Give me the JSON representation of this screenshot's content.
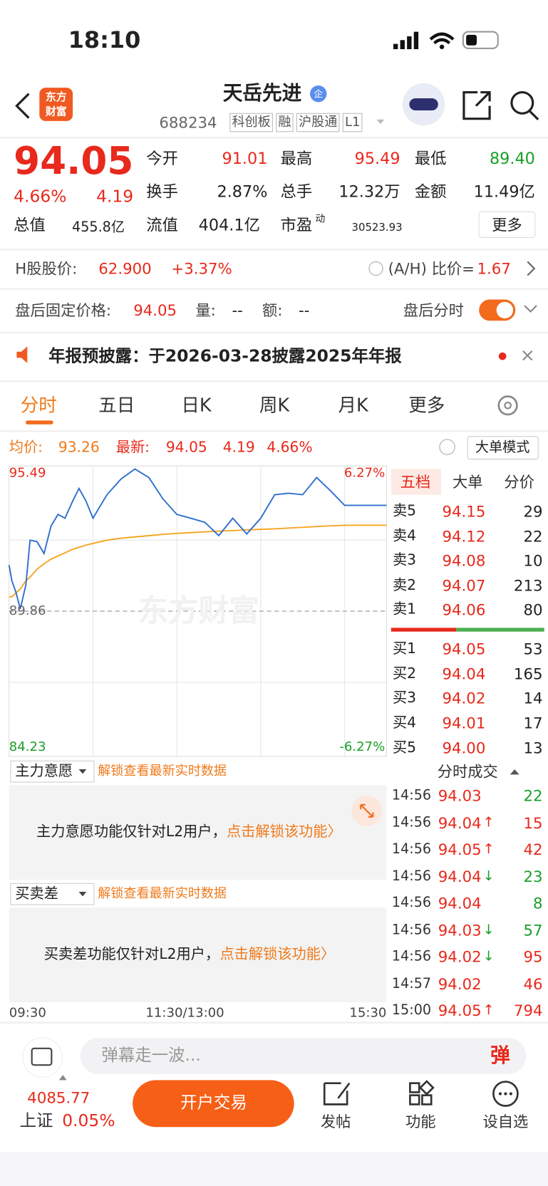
{
  "status": {
    "time": "18:10"
  },
  "header": {
    "logo": [
      "东方",
      "财富"
    ],
    "title": "天岳先进",
    "badge": "企",
    "code": "688234",
    "tags": [
      "科创板",
      "融",
      "沪股通",
      "L1"
    ]
  },
  "quote": {
    "price": "94.05",
    "change_pct": "4.66%",
    "change": "4.19",
    "fields": [
      {
        "label": "今开",
        "value": "91.01",
        "color": "#e8291c"
      },
      {
        "label": "最高",
        "value": "95.49",
        "color": "#e8291c"
      },
      {
        "label": "最低",
        "value": "89.40",
        "color": "#1a9e2a"
      },
      {
        "label": "换手",
        "value": "2.87%"
      },
      {
        "label": "总手",
        "value": "12.32万"
      },
      {
        "label": "金额",
        "value": "11.49亿"
      },
      {
        "label": "总值",
        "value": "455.8亿"
      },
      {
        "label": "流值",
        "value": "404.1亿"
      },
      {
        "label": "市盈",
        "sup": "动",
        "value": "30523.93"
      }
    ],
    "more": "更多"
  },
  "hk": {
    "label": "H股股价:",
    "price": "62.900",
    "change": "+3.37%",
    "ah_label": "(A/H) 比价=",
    "ah": "1.67"
  },
  "after_hours": {
    "label": "盘后固定价格:",
    "price": "94.05",
    "vol_label": "量:",
    "vol": "--",
    "amt_label": "额:",
    "amt": "--",
    "switch_label": "盘后分时"
  },
  "notice": "年报预披露：于2026-03-28披露2025年年报",
  "tabs": [
    "分时",
    "五日",
    "日K",
    "周K",
    "月K",
    "更多"
  ],
  "stats": {
    "avg_label": "均价:",
    "avg": "93.26",
    "last_label": "最新:",
    "last": "94.05",
    "change": "4.19",
    "change_pct": "4.66%",
    "mode": "大单模式"
  },
  "chart": {
    "type": "line",
    "x": [
      0,
      2,
      5,
      8,
      12,
      15,
      20,
      25,
      30,
      35,
      40,
      45,
      50,
      55,
      60,
      70,
      80,
      90,
      100,
      110,
      120,
      130,
      140,
      150,
      160,
      170,
      180,
      190,
      200,
      210,
      220,
      230,
      240,
      270
    ],
    "xlim": [
      0,
      270
    ],
    "ylim": [
      84.23,
      95.49
    ],
    "yticks": [
      95.49,
      89.86,
      84.23
    ],
    "pct_labels": [
      "6.27%",
      "-6.27%"
    ],
    "xlabels": [
      "09:30",
      "11:30/13:00",
      "15:30"
    ],
    "watermark": "东方财富",
    "series": [
      {
        "color": "#2f6fce",
        "values": [
          91.68,
          91.06,
          90.59,
          89.95,
          90.9,
          92.67,
          92.61,
          92.14,
          93.23,
          93.69,
          93.54,
          94.16,
          94.72,
          94.22,
          93.54,
          94.47,
          95.09,
          95.49,
          95.15,
          94.31,
          93.69,
          93.54,
          93.38,
          92.85,
          93.54,
          92.92,
          93.54,
          94.47,
          94.53,
          94.47,
          95.15,
          94.62,
          94.05,
          94.05
        ]
      },
      {
        "color": "#f5a623",
        "values": [
          90.43,
          90.43,
          90.59,
          90.74,
          91.06,
          91.21,
          91.52,
          91.74,
          91.92,
          92.05,
          92.17,
          92.3,
          92.39,
          92.48,
          92.54,
          92.67,
          92.75,
          92.8,
          92.85,
          92.9,
          92.94,
          92.97,
          93.0,
          93.03,
          93.05,
          93.08,
          93.1,
          93.12,
          93.15,
          93.18,
          93.21,
          93.24,
          93.26,
          93.26
        ]
      }
    ]
  },
  "book": {
    "tabs": [
      "五档",
      "大单",
      "分价"
    ],
    "asks": [
      {
        "label": "卖5",
        "price": "94.15",
        "vol": "29"
      },
      {
        "label": "卖4",
        "price": "94.12",
        "vol": "22"
      },
      {
        "label": "卖3",
        "price": "94.08",
        "vol": "10"
      },
      {
        "label": "卖2",
        "price": "94.07",
        "vol": "213"
      },
      {
        "label": "卖1",
        "price": "94.06",
        "vol": "80"
      }
    ],
    "bids": [
      {
        "label": "买1",
        "price": "94.05",
        "vol": "53"
      },
      {
        "label": "买2",
        "price": "94.04",
        "vol": "165"
      },
      {
        "label": "买3",
        "price": "94.02",
        "vol": "14"
      },
      {
        "label": "买4",
        "price": "94.01",
        "vol": "17"
      },
      {
        "label": "买5",
        "price": "94.00",
        "vol": "13"
      }
    ]
  },
  "trades": {
    "title": "分时成交",
    "rows": [
      {
        "time": "14:56",
        "price": "94.03",
        "arrow": "",
        "vol": "22",
        "color": "#1a9e2a"
      },
      {
        "time": "14:56",
        "price": "94.04",
        "arrow": "↑",
        "vol": "15",
        "color": "#e8291c"
      },
      {
        "time": "14:56",
        "price": "94.05",
        "arrow": "↑",
        "vol": "42",
        "color": "#e8291c"
      },
      {
        "time": "14:56",
        "price": "94.04",
        "arrow": "↓",
        "vol": "23",
        "color": "#1a9e2a"
      },
      {
        "time": "14:56",
        "price": "94.04",
        "arrow": "",
        "vol": "8",
        "color": "#1a9e2a"
      },
      {
        "time": "14:56",
        "price": "94.03",
        "arrow": "↓",
        "vol": "57",
        "color": "#1a9e2a"
      },
      {
        "time": "14:56",
        "price": "94.02",
        "arrow": "↓",
        "vol": "95",
        "color": "#e8291c"
      },
      {
        "time": "14:57",
        "price": "94.02",
        "arrow": "",
        "vol": "46",
        "color": "#e8291c"
      },
      {
        "time": "15:00",
        "price": "94.05",
        "arrow": "↑",
        "vol": "794",
        "color": "#e8291c"
      }
    ]
  },
  "panels": [
    {
      "name": "主力意愿",
      "unlock": "解锁查看最新实时数据",
      "note": "主力意愿功能仅针对L2用户，",
      "link": "点击解锁该功能〉"
    },
    {
      "name": "买卖差",
      "unlock": "解锁查看最新实时数据",
      "note": "买卖差功能仅针对L2用户，",
      "link": "点击解锁该功能〉"
    }
  ],
  "bottom": {
    "placeholder": "弹幕走一波...",
    "danmu": "弹",
    "index_value": "4085.77",
    "index_name": "上证",
    "index_change": "0.05%",
    "trade": "开户交易",
    "nav": [
      "发帖",
      "功能",
      "设自选"
    ]
  }
}
